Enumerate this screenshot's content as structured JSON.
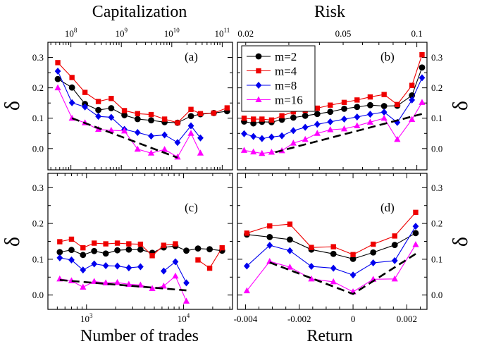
{
  "titles": {
    "top_left": "Capitalization",
    "top_right": "Risk",
    "bottom_left": "Number of trades",
    "bottom_right": "Return"
  },
  "ylabel": "δ",
  "panel_labels": [
    "(a)",
    "(b)",
    "(c)",
    "(d)"
  ],
  "legend": [
    "m=2",
    "m=4",
    "m=8",
    "m=16"
  ],
  "colors": {
    "m2": "#000000",
    "m4": "#ee0000",
    "m8": "#0000ee",
    "m16": "#ff00ff",
    "fit": "#000000"
  },
  "chart_data": [
    {
      "panel": "(a)",
      "type": "line",
      "xaxis": "top",
      "xscale": "log",
      "xlabel": "Capitalization",
      "xlim": [
        35000000.0,
        160000000000.0
      ],
      "ylim": [
        -0.07,
        0.35
      ],
      "yticks": [
        0.0,
        0.1,
        0.2,
        0.3
      ],
      "yticklabels": [
        "0.0",
        "0.1",
        "0.2",
        "0.3"
      ],
      "xticks": [
        100000000.0,
        1000000000.0,
        10000000000.0,
        100000000000.0
      ],
      "xticklabels": [
        "10^8",
        "10^9",
        "10^10",
        "10^11"
      ],
      "x": [
        55000000.0,
        105000000.0,
        190000000.0,
        350000000.0,
        630000000.0,
        1150000000.0,
        2100000000.0,
        3900000000.0,
        7200000000.0,
        13000000000.0,
        24000000000.0,
        37000000000.0,
        68000000000.0,
        125000000000.0
      ],
      "series": [
        {
          "name": "m=2",
          "key": "m2",
          "values": [
            0.229,
            0.201,
            0.147,
            0.127,
            0.133,
            0.11,
            0.097,
            0.093,
            0.087,
            0.085,
            0.107,
            0.113,
            0.117,
            0.123
          ],
          "marker": "circle"
        },
        {
          "name": "m=4",
          "key": "m4",
          "values": [
            0.283,
            0.234,
            0.185,
            0.155,
            0.165,
            0.125,
            0.115,
            0.112,
            0.097,
            0.085,
            0.129,
            0.115,
            0.117,
            0.134
          ],
          "marker": "square"
        },
        {
          "name": "m=8",
          "key": "m8",
          "values": [
            0.255,
            0.151,
            0.137,
            0.106,
            0.103,
            0.063,
            0.053,
            0.041,
            0.045,
            0.02,
            0.075,
            0.035,
            null,
            null
          ],
          "marker": "diamond"
        },
        {
          "name": "m=16",
          "key": "m16",
          "values": [
            0.2,
            0.1,
            0.085,
            0.063,
            0.06,
            0.058,
            -0.002,
            -0.015,
            -0.003,
            -0.028,
            0.05,
            -0.015,
            null,
            null
          ],
          "marker": "triangle"
        }
      ],
      "fit": {
        "x": [
          105000000.0,
          13000000000.0
        ],
        "y": [
          0.1,
          -0.03
        ]
      }
    },
    {
      "panel": "(b)",
      "type": "line",
      "xaxis": "top",
      "xscale": "log",
      "xlabel": "Risk",
      "xlim": [
        0.0185,
        0.11
      ],
      "ylim": [
        -0.07,
        0.35
      ],
      "yticks": [
        0.0,
        0.1,
        0.2,
        0.3
      ],
      "yticklabels": [
        "0.0",
        "0.1",
        "0.2",
        "0.3"
      ],
      "xticks": [
        0.02,
        0.05,
        0.1
      ],
      "xticklabels": [
        "0.02",
        "0.05",
        "0.1"
      ],
      "x": [
        0.0197,
        0.0215,
        0.0233,
        0.0255,
        0.0281,
        0.0313,
        0.035,
        0.0392,
        0.0443,
        0.0505,
        0.057,
        0.0645,
        0.0735,
        0.0832,
        0.0955,
        0.105
      ],
      "series": [
        {
          "name": "m=2",
          "key": "m2",
          "values": [
            0.089,
            0.083,
            0.088,
            0.087,
            0.095,
            0.102,
            0.108,
            0.114,
            0.121,
            0.131,
            0.137,
            0.143,
            0.14,
            0.141,
            0.175,
            0.267
          ],
          "marker": "circle"
        },
        {
          "name": "m=4",
          "key": "m4",
          "values": [
            0.1,
            0.097,
            0.097,
            0.094,
            0.108,
            0.121,
            0.126,
            0.133,
            0.143,
            0.152,
            0.16,
            0.17,
            0.178,
            0.145,
            0.208,
            0.309
          ],
          "marker": "square"
        },
        {
          "name": "m=8",
          "key": "m8",
          "values": [
            0.049,
            0.04,
            0.033,
            0.038,
            0.042,
            0.059,
            0.07,
            0.08,
            0.088,
            0.097,
            0.104,
            0.113,
            0.12,
            0.086,
            0.16,
            0.233
          ],
          "marker": "diamond"
        },
        {
          "name": "m=16",
          "key": "m16",
          "values": [
            -0.006,
            -0.011,
            -0.016,
            -0.012,
            -0.007,
            0.018,
            0.03,
            0.05,
            0.062,
            0.065,
            0.075,
            0.087,
            0.1,
            0.03,
            0.096,
            0.152
          ],
          "marker": "triangle"
        }
      ],
      "fit": {
        "x": [
          0.0264,
          0.105
        ],
        "y": [
          -0.012,
          0.114
        ]
      }
    },
    {
      "panel": "(c)",
      "type": "line",
      "xaxis": "bottom",
      "xscale": "log",
      "xlabel": "Number of trades",
      "xlim": [
        400,
        32000
      ],
      "ylim": [
        -0.04,
        0.34
      ],
      "yticks": [
        0.0,
        0.1,
        0.2,
        0.3
      ],
      "yticklabels": [
        "0.0",
        "0.1",
        "0.2",
        "0.3"
      ],
      "xticks": [
        1000,
        10000
      ],
      "xticklabels": [
        "10^3",
        "10^4"
      ],
      "x": [
        530,
        700,
        920,
        1200,
        1580,
        2080,
        2730,
        3600,
        4760,
        6250,
        8250,
        10700,
        14100,
        18600,
        25000
      ],
      "series": [
        {
          "name": "m=2",
          "key": "m2",
          "values": [
            0.12,
            0.126,
            0.112,
            0.123,
            0.116,
            0.125,
            0.127,
            0.127,
            0.118,
            0.133,
            0.137,
            0.124,
            0.13,
            0.128,
            0.124
          ],
          "marker": "circle"
        },
        {
          "name": "m=4",
          "key": "m4",
          "values": [
            0.149,
            0.156,
            0.132,
            0.145,
            0.143,
            0.145,
            0.143,
            0.142,
            0.11,
            0.139,
            0.143,
            null,
            0.098,
            0.075,
            0.132
          ],
          "marker": "square"
        },
        {
          "name": "m=8",
          "key": "m8",
          "values": [
            0.104,
            0.098,
            0.07,
            0.087,
            0.082,
            0.081,
            0.076,
            0.079,
            null,
            0.067,
            0.093,
            0.034,
            null,
            null,
            null
          ],
          "marker": "diamond"
        },
        {
          "name": "m=16",
          "key": "m16",
          "values": [
            0.045,
            0.04,
            0.022,
            0.038,
            0.034,
            0.035,
            0.03,
            0.028,
            0.018,
            0.025,
            0.053,
            -0.017,
            null,
            null,
            null
          ],
          "marker": "triangle"
        }
      ],
      "fit": {
        "x": [
          530,
          10700
        ],
        "y": [
          0.042,
          0.013
        ]
      }
    },
    {
      "panel": "(d)",
      "type": "line",
      "xaxis": "bottom",
      "xscale": "linear",
      "xlabel": "Return",
      "xlim": [
        -0.0043,
        0.00275
      ],
      "ylim": [
        -0.04,
        0.34
      ],
      "yticks": [
        0.0,
        0.1,
        0.2,
        0.3
      ],
      "yticklabels": [
        "0.0",
        "0.1",
        "0.2",
        "0.3"
      ],
      "xticks": [
        -0.004,
        -0.002,
        0.0,
        0.002
      ],
      "xticklabels": [
        "-0.004",
        "-0.002",
        "0",
        "0.002"
      ],
      "x": [
        -0.00395,
        -0.0031,
        -0.00235,
        -0.00155,
        -0.00073,
        0.0,
        0.00075,
        0.00155,
        0.00233
      ],
      "series": [
        {
          "name": "m=2",
          "key": "m2",
          "values": [
            0.169,
            0.162,
            0.155,
            0.127,
            0.115,
            0.101,
            0.119,
            0.14,
            0.173
          ],
          "marker": "circle"
        },
        {
          "name": "m=4",
          "key": "m4",
          "values": [
            0.173,
            0.193,
            0.198,
            0.133,
            0.135,
            0.113,
            0.142,
            0.165,
            0.231
          ],
          "marker": "square"
        },
        {
          "name": "m=8",
          "key": "m8",
          "values": [
            0.081,
            0.139,
            0.124,
            0.08,
            0.075,
            0.056,
            0.09,
            0.096,
            0.192
          ],
          "marker": "diamond"
        },
        {
          "name": "m=16",
          "key": "m16",
          "values": [
            0.012,
            0.094,
            0.078,
            0.045,
            0.037,
            0.009,
            0.044,
            0.045,
            0.141
          ],
          "marker": "triangle"
        }
      ],
      "fit": {
        "x": [
          -0.0031,
          0.0,
          0.00233
        ],
        "y": [
          0.091,
          0.003,
          0.115
        ]
      }
    }
  ]
}
